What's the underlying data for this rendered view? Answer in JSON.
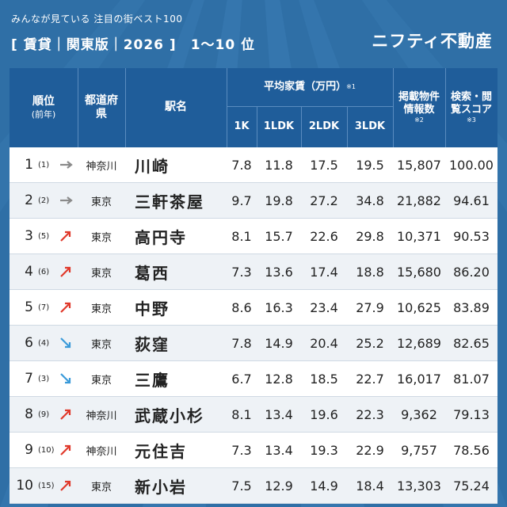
{
  "header": {
    "subtitle": "みんなが見ている 注目の街ベスト100",
    "title": "[ 賃貸｜関東版｜2026 ]　1〜10 位",
    "brand": "ニフティ不動産"
  },
  "columns": {
    "rank": "順位",
    "rank_prev": "(前年)",
    "prefecture": "都道府県",
    "station": "駅名",
    "avg_rent": "平均家賃（万円）",
    "avg_rent_note": "※1",
    "r1k": "1K",
    "r1ldk": "1LDK",
    "r2ldk": "2LDK",
    "r3ldk": "3LDK",
    "listings": "掲載物件情報数",
    "listings_note": "※2",
    "score": "検索・閲覧スコア",
    "score_note": "※3"
  },
  "colors": {
    "header_bg": "#1f5d9a",
    "page_bg": "#2f6fa6",
    "arrow_up": "#e0392b",
    "arrow_down": "#3a9ad9",
    "arrow_same": "#8a8a8a"
  },
  "chart_data": {
    "type": "table",
    "title": "[ 賃貸｜関東版｜2026 ]　1〜10 位",
    "columns": [
      "順位",
      "前年",
      "都道府県",
      "駅名",
      "1K",
      "1LDK",
      "2LDK",
      "3LDK",
      "掲載物件情報数",
      "検索・閲覧スコア"
    ],
    "rows": [
      {
        "rank": "1",
        "prev": "(1)",
        "trend": "same",
        "pref": "神奈川",
        "station": "川崎",
        "k1": "7.8",
        "ldk1": "11.8",
        "ldk2": "17.5",
        "ldk3": "19.5",
        "listings": "15,807",
        "score": "100.00"
      },
      {
        "rank": "2",
        "prev": "(2)",
        "trend": "same",
        "pref": "東京",
        "station": "三軒茶屋",
        "k1": "9.7",
        "ldk1": "19.8",
        "ldk2": "27.2",
        "ldk3": "34.8",
        "listings": "21,882",
        "score": "94.61"
      },
      {
        "rank": "3",
        "prev": "(5)",
        "trend": "up",
        "pref": "東京",
        "station": "高円寺",
        "k1": "8.1",
        "ldk1": "15.7",
        "ldk2": "22.6",
        "ldk3": "29.8",
        "listings": "10,371",
        "score": "90.53"
      },
      {
        "rank": "4",
        "prev": "(6)",
        "trend": "up",
        "pref": "東京",
        "station": "葛西",
        "k1": "7.3",
        "ldk1": "13.6",
        "ldk2": "17.4",
        "ldk3": "18.8",
        "listings": "15,680",
        "score": "86.20"
      },
      {
        "rank": "5",
        "prev": "(7)",
        "trend": "up",
        "pref": "東京",
        "station": "中野",
        "k1": "8.6",
        "ldk1": "16.3",
        "ldk2": "23.4",
        "ldk3": "27.9",
        "listings": "10,625",
        "score": "83.89"
      },
      {
        "rank": "6",
        "prev": "(4)",
        "trend": "down",
        "pref": "東京",
        "station": "荻窪",
        "k1": "7.8",
        "ldk1": "14.9",
        "ldk2": "20.4",
        "ldk3": "25.2",
        "listings": "12,689",
        "score": "82.65"
      },
      {
        "rank": "7",
        "prev": "(3)",
        "trend": "down",
        "pref": "東京",
        "station": "三鷹",
        "k1": "6.7",
        "ldk1": "12.8",
        "ldk2": "18.5",
        "ldk3": "22.7",
        "listings": "16,017",
        "score": "81.07"
      },
      {
        "rank": "8",
        "prev": "(9)",
        "trend": "up",
        "pref": "神奈川",
        "station": "武蔵小杉",
        "k1": "8.1",
        "ldk1": "13.4",
        "ldk2": "19.6",
        "ldk3": "22.3",
        "listings": "9,362",
        "score": "79.13"
      },
      {
        "rank": "9",
        "prev": "(10)",
        "trend": "up",
        "pref": "神奈川",
        "station": "元住吉",
        "k1": "7.3",
        "ldk1": "13.4",
        "ldk2": "19.3",
        "ldk3": "22.9",
        "listings": "9,757",
        "score": "78.56"
      },
      {
        "rank": "10",
        "prev": "(15)",
        "trend": "up",
        "pref": "東京",
        "station": "新小岩",
        "k1": "7.5",
        "ldk1": "12.9",
        "ldk2": "14.9",
        "ldk3": "18.4",
        "listings": "13,303",
        "score": "75.24"
      }
    ]
  }
}
